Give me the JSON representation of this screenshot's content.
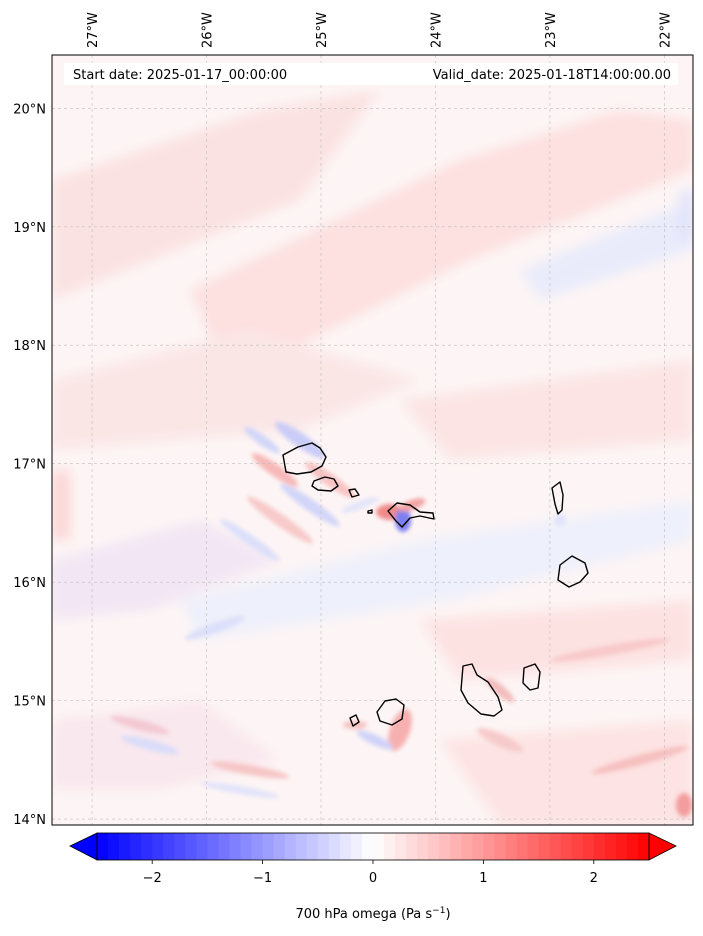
{
  "header": {
    "start_date": "Start date: 2025-01-17_00:00:00",
    "valid_date": "Valid_date: 2025-01-18T14:00:00.00"
  },
  "map": {
    "lon_range": [
      -27.35,
      -21.75
    ],
    "lat_range": [
      13.95,
      20.45
    ],
    "lon_ticks": [
      {
        "value": -27,
        "label": "27°W"
      },
      {
        "value": -26,
        "label": "26°W"
      },
      {
        "value": -25,
        "label": "25°W"
      },
      {
        "value": -24,
        "label": "24°W"
      },
      {
        "value": -23,
        "label": "23°W"
      },
      {
        "value": -22,
        "label": "22°W"
      }
    ],
    "lat_ticks": [
      {
        "value": 14,
        "label": "14°N"
      },
      {
        "value": 15,
        "label": "15°N"
      },
      {
        "value": 16,
        "label": "16°N"
      },
      {
        "value": 17,
        "label": "17°N"
      },
      {
        "value": 18,
        "label": "18°N"
      },
      {
        "value": 19,
        "label": "19°N"
      },
      {
        "value": 20,
        "label": "20°N"
      }
    ],
    "gridlines": true,
    "islands": [
      "Santo Antão",
      "São Vicente",
      "Santa Luzia",
      "São Nicolau",
      "Sal",
      "Boa Vista",
      "Maio",
      "Santiago",
      "Fogo",
      "Brava"
    ]
  },
  "colorbar": {
    "label": "700 hPa omega (Pa s",
    "label_sup": "−1",
    "label_close": ")",
    "range": [
      -2.5,
      2.5
    ],
    "extend": "both",
    "colormap": "bwr",
    "neg_color": "#0000ff",
    "pos_color": "#ff0000",
    "ticks": [
      {
        "value": -2,
        "label": "−2"
      },
      {
        "value": -1,
        "label": "−1"
      },
      {
        "value": 0,
        "label": "0"
      },
      {
        "value": 1,
        "label": "1"
      },
      {
        "value": 2,
        "label": "2"
      }
    ]
  }
}
